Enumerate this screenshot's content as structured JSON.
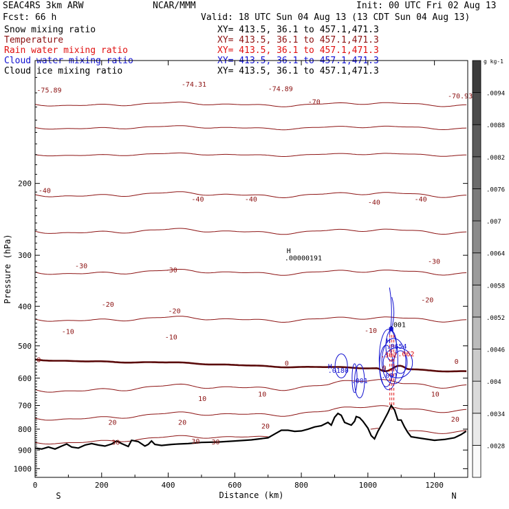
{
  "header": {
    "model": "SEAC4RS  3km ARW",
    "center": "NCAR/MMM",
    "init": "Init: 00 UTC Fri 02 Aug 13",
    "fcst": "Fcst:   66 h",
    "valid": "Valid: 18 UTC Sun 04 Aug 13 (13 CDT Sun 04 Aug 13)"
  },
  "legend": [
    {
      "label": "Snow mixing ratio",
      "xy": "XY= 413.5, 36.1 to 457.1,471.3",
      "color": "#000000"
    },
    {
      "label": "Temperature",
      "xy": "XY= 413.5, 36.1 to 457.1,471.3",
      "color": "#8b1010"
    },
    {
      "label": "Rain water mixing ratio",
      "xy": "XY= 413.5, 36.1 to 457.1,471.3",
      "color": "#e01010"
    },
    {
      "label": "Cloud water mixing ratio",
      "xy": "XY= 413.5, 36.1 to 457.1,471.3",
      "color": "#1010d0"
    },
    {
      "label": "Cloud ice mixing ratio",
      "xy": "XY= 413.5, 36.1 to 457.1,471.3",
      "color": "#000000"
    }
  ],
  "chart_data": {
    "type": "cross-section",
    "xlabel": "Distance (km)",
    "ylabel": "Pressure (hPa)",
    "xlim": [
      0,
      1300
    ],
    "ylim": [
      1050,
      100
    ],
    "x_ticks": [
      "0",
      "200",
      "400",
      "600",
      "800",
      "1000",
      "1200"
    ],
    "y_ticks": [
      "200",
      "300",
      "400",
      "500",
      "600",
      "700",
      "800",
      "900",
      "1000"
    ],
    "y_scale": "log",
    "endpoints": {
      "left": "S",
      "right": "N"
    },
    "temperature_contours_C": [
      -70,
      -60,
      -50,
      -40,
      -30,
      -20,
      -10,
      0,
      10,
      20,
      30
    ],
    "temperature_labels": [
      {
        "x": 10,
        "p": 208,
        "text": "-40"
      },
      {
        "x": 120,
        "p": 318,
        "text": "-30"
      },
      {
        "x": 200,
        "p": 395,
        "text": "-20"
      },
      {
        "x": 80,
        "p": 460,
        "text": "-10"
      },
      {
        "x": 5,
        "p": 540,
        "text": "0"
      },
      {
        "x": 470,
        "p": 218,
        "text": "-40"
      },
      {
        "x": 630,
        "p": 218,
        "text": "-40"
      },
      {
        "x": 390,
        "p": 325,
        "text": "-30"
      },
      {
        "x": 400,
        "p": 410,
        "text": "-20"
      },
      {
        "x": 390,
        "p": 475,
        "text": "-10"
      },
      {
        "x": 1000,
        "p": 222,
        "text": "-40"
      },
      {
        "x": 1140,
        "p": 218,
        "text": "-40"
      },
      {
        "x": 1180,
        "p": 310,
        "text": "-30"
      },
      {
        "x": 1160,
        "p": 385,
        "text": "-20"
      },
      {
        "x": 990,
        "p": 458,
        "text": "-10"
      },
      {
        "x": 750,
        "p": 550,
        "text": "0"
      },
      {
        "x": 1260,
        "p": 545,
        "text": "0"
      },
      {
        "x": 490,
        "p": 672,
        "text": "10"
      },
      {
        "x": 670,
        "p": 655,
        "text": "10"
      },
      {
        "x": 1190,
        "p": 655,
        "text": "10"
      },
      {
        "x": 220,
        "p": 768,
        "text": "20"
      },
      {
        "x": 430,
        "p": 768,
        "text": "20"
      },
      {
        "x": 680,
        "p": 785,
        "text": "20"
      },
      {
        "x": 1250,
        "p": 755,
        "text": "20"
      },
      {
        "x": 230,
        "p": 860,
        "text": "30"
      },
      {
        "x": 470,
        "p": 855,
        "text": "30"
      },
      {
        "x": 530,
        "p": 858,
        "text": "30"
      },
      {
        "x": 5,
        "p": 118,
        "text": "-75.89"
      },
      {
        "x": 440,
        "p": 114,
        "text": "-74.31"
      },
      {
        "x": 700,
        "p": 117,
        "text": "-74.89"
      },
      {
        "x": 820,
        "p": 126,
        "text": "-70"
      },
      {
        "x": 1240,
        "p": 122,
        "text": "-70.93"
      }
    ],
    "annotations": [
      {
        "x": 756,
        "p": 292,
        "text": "H",
        "color": "#000000"
      },
      {
        "x": 750,
        "p": 304,
        "text": ".00000191",
        "color": "#000000"
      },
      {
        "x": 1064,
        "p": 443,
        "text": ".001",
        "color": "#000000"
      },
      {
        "x": 1055,
        "p": 485,
        "text": "H",
        "color": "#1010d0"
      },
      {
        "x": 1055,
        "p": 500,
        "text": ".8654",
        "color": "#1010d0"
      },
      {
        "x": 1038,
        "p": 525,
        "text": ".302",
        "color": "#e01010"
      },
      {
        "x": 1090,
        "p": 522,
        "text": ".062",
        "color": "#e01010"
      },
      {
        "x": 880,
        "p": 560,
        "text": "H",
        "color": "#1010d0"
      },
      {
        "x": 880,
        "p": 573,
        "text": ".0180",
        "color": "#1010d0"
      },
      {
        "x": 950,
        "p": 608,
        "text": ".001",
        "color": "#1010d0"
      },
      {
        "x": 1040,
        "p": 590,
        "text": ".001",
        "color": "#1010d0"
      },
      {
        "x": 1043,
        "p": 566,
        "text": "0",
        "color": "#8b1010"
      }
    ],
    "terrain_surface_hPa": [
      [
        0,
        890
      ],
      [
        20,
        895
      ],
      [
        40,
        885
      ],
      [
        60,
        895
      ],
      [
        80,
        880
      ],
      [
        95,
        870
      ],
      [
        110,
        885
      ],
      [
        130,
        890
      ],
      [
        150,
        875
      ],
      [
        170,
        868
      ],
      [
        190,
        875
      ],
      [
        210,
        880
      ],
      [
        230,
        870
      ],
      [
        245,
        855
      ],
      [
        260,
        868
      ],
      [
        280,
        882
      ],
      [
        290,
        852
      ],
      [
        310,
        858
      ],
      [
        330,
        880
      ],
      [
        340,
        872
      ],
      [
        350,
        855
      ],
      [
        360,
        872
      ],
      [
        380,
        877
      ],
      [
        410,
        872
      ],
      [
        430,
        870
      ],
      [
        460,
        868
      ],
      [
        500,
        862
      ],
      [
        550,
        860
      ],
      [
        600,
        855
      ],
      [
        650,
        850
      ],
      [
        700,
        840
      ],
      [
        720,
        822
      ],
      [
        740,
        805
      ],
      [
        760,
        805
      ],
      [
        780,
        810
      ],
      [
        800,
        808
      ],
      [
        820,
        800
      ],
      [
        840,
        790
      ],
      [
        860,
        785
      ],
      [
        880,
        770
      ],
      [
        890,
        782
      ],
      [
        900,
        748
      ],
      [
        910,
        732
      ],
      [
        920,
        740
      ],
      [
        930,
        770
      ],
      [
        950,
        782
      ],
      [
        960,
        765
      ],
      [
        965,
        745
      ],
      [
        975,
        750
      ],
      [
        985,
        765
      ],
      [
        1000,
        795
      ],
      [
        1010,
        830
      ],
      [
        1020,
        845
      ],
      [
        1030,
        810
      ],
      [
        1045,
        770
      ],
      [
        1060,
        730
      ],
      [
        1070,
        700
      ],
      [
        1080,
        718
      ],
      [
        1090,
        760
      ],
      [
        1100,
        760
      ],
      [
        1110,
        790
      ],
      [
        1120,
        815
      ],
      [
        1130,
        835
      ],
      [
        1150,
        840
      ],
      [
        1170,
        845
      ],
      [
        1200,
        852
      ],
      [
        1230,
        848
      ],
      [
        1260,
        840
      ],
      [
        1280,
        825
      ],
      [
        1295,
        810
      ]
    ],
    "colorbar": {
      "unit": "g kg-1",
      "levels": [
        ".0028",
        ".0034",
        ".004",
        ".0046",
        ".0052",
        ".0058",
        ".0064",
        ".007",
        ".0076",
        ".0082",
        ".0088",
        ".0094"
      ]
    }
  },
  "colors": {
    "temperature": "#8b1010",
    "freezing": "#5a0a0a",
    "rain": "#e01010",
    "cloudwater": "#1010d0",
    "terrain": "#000000"
  }
}
